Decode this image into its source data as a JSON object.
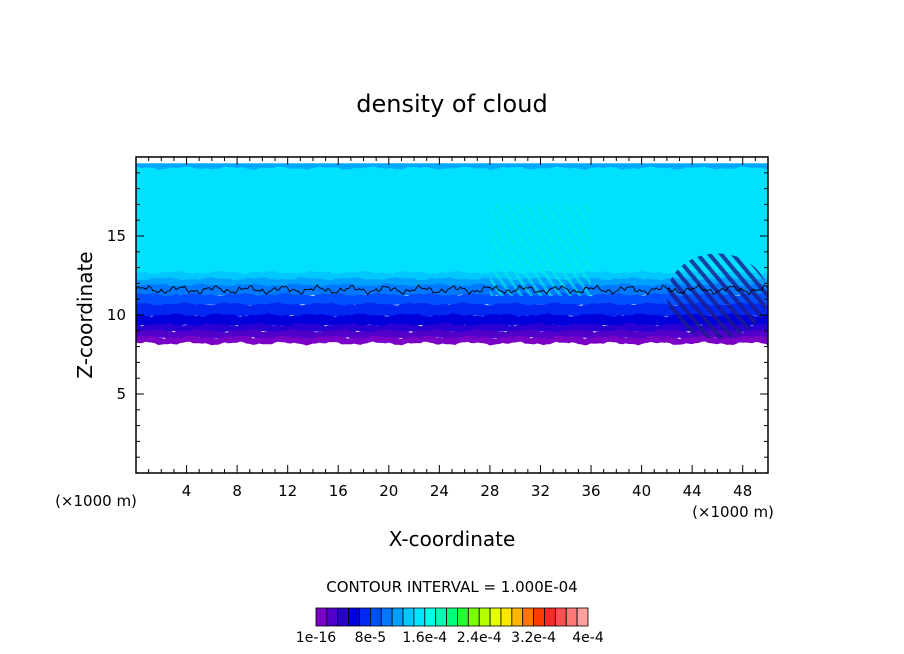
{
  "chart_data": {
    "type": "heatmap",
    "title": "density of cloud",
    "xlabel": "X-coordinate",
    "ylabel": "Z-coordinate",
    "x_unit": "(×1000 m)",
    "xlim": [
      0,
      50
    ],
    "ylim": [
      0,
      20
    ],
    "x_ticks": [
      4,
      8,
      12,
      16,
      20,
      24,
      28,
      32,
      36,
      40,
      44,
      48
    ],
    "y_ticks": [
      5,
      10,
      15
    ],
    "contour_interval_label": "CONTOUR INTERVAL = 1.000E-04",
    "colorbar_labels": [
      "1e-16",
      "8e-5",
      "1.6e-4",
      "2.4e-4",
      "3.2e-4",
      "4e-4"
    ],
    "colorbar_colors": [
      "#7a00c8",
      "#5000c8",
      "#2800d2",
      "#0000dc",
      "#0028f0",
      "#0050ff",
      "#0078ff",
      "#00a0ff",
      "#00c8ff",
      "#00e6ff",
      "#00ffe6",
      "#00ffb4",
      "#00ff78",
      "#28ff28",
      "#78ff00",
      "#b4ff00",
      "#e6ff00",
      "#ffe600",
      "#ffb400",
      "#ff7800",
      "#ff3c00",
      "#ff2828",
      "#ff5050",
      "#ff7878",
      "#ffa0a0"
    ],
    "cloud_layer": {
      "cloud_base_z": 8.2,
      "dense_core_z": [
        8.3,
        11.5
      ],
      "upper_layer_top_z": 19.4,
      "contour_line_z": 11.6,
      "note_color_fill": "#00e1ff"
    },
    "grid": false,
    "legend": "bottom"
  }
}
